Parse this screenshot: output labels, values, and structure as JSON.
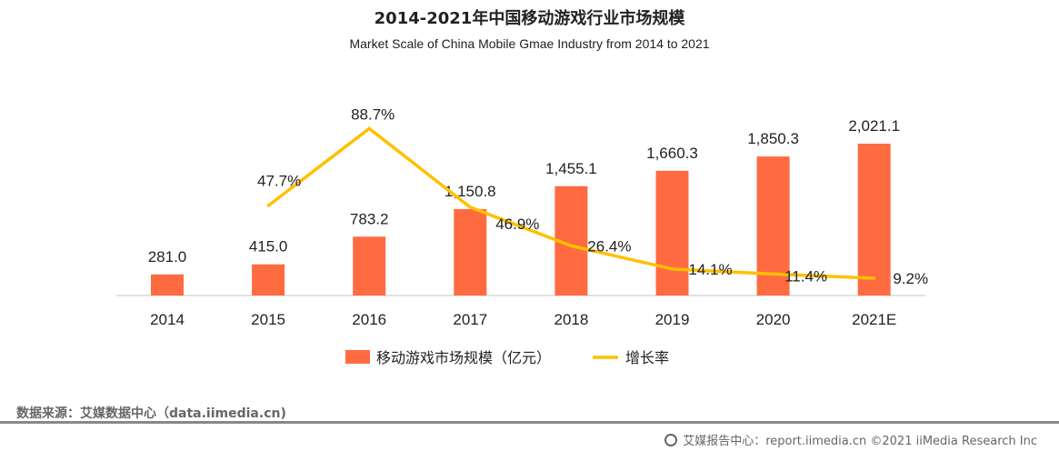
{
  "chart_data": {
    "type": "bar+line",
    "title": "2014-2021年中国移动游戏行业市场规模",
    "subtitle": "Market Scale of China Mobile Gmae Industry from 2014 to 2021",
    "categories": [
      "2014",
      "2015",
      "2016",
      "2017",
      "2018",
      "2019",
      "2020",
      "2021E"
    ],
    "series": [
      {
        "name": "移动游戏市场规模（亿元）",
        "type": "bar",
        "color": "#FF6B40",
        "values": [
          281.0,
          415.0,
          783.2,
          1150.8,
          1455.1,
          1660.3,
          1850.3,
          2021.1
        ],
        "labels": [
          "281.0",
          "415.0",
          "783.2",
          "1,150.8",
          "1,455.1",
          "1,660.3",
          "1,850.3",
          "2,021.1"
        ]
      },
      {
        "name": "增长率",
        "type": "line",
        "color": "#FFC000",
        "values": [
          null,
          47.7,
          88.7,
          46.9,
          26.4,
          14.1,
          11.4,
          9.2
        ],
        "labels": [
          "",
          "47.7%",
          "88.7%",
          "46.9%",
          "26.4%",
          "14.1%",
          "11.4%",
          "9.2%"
        ]
      }
    ],
    "legend_position": "bottom",
    "grid": false
  },
  "source": "数据来源：艾媒数据中心（data.iimedia.cn)",
  "footer": "艾媒报告中心：report.iimedia.cn   ©2021  iiMedia Research  Inc"
}
